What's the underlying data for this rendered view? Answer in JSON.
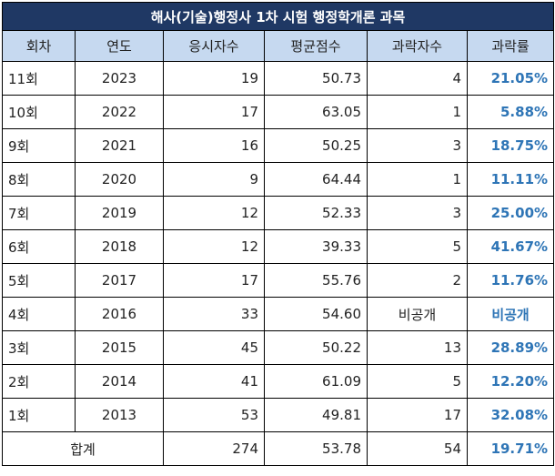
{
  "title": "해사(기술)행정사 1차 시험 행정학개론 과목",
  "headers": [
    "회차",
    "연도",
    "응시자수",
    "평균점수",
    "과락자수",
    "과락률"
  ],
  "rows": [
    {
      "round": "11회",
      "year": "2023",
      "applicants": "19",
      "avg": "50.73",
      "fails": "4",
      "rate": "21.05%"
    },
    {
      "round": "10회",
      "year": "2022",
      "applicants": "17",
      "avg": "63.05",
      "fails": "1",
      "rate": "5.88%"
    },
    {
      "round": "9회",
      "year": "2021",
      "applicants": "16",
      "avg": "50.25",
      "fails": "3",
      "rate": "18.75%"
    },
    {
      "round": "8회",
      "year": "2020",
      "applicants": "9",
      "avg": "64.44",
      "fails": "1",
      "rate": "11.11%"
    },
    {
      "round": "7회",
      "year": "2019",
      "applicants": "12",
      "avg": "52.33",
      "fails": "3",
      "rate": "25.00%"
    },
    {
      "round": "6회",
      "year": "2018",
      "applicants": "12",
      "avg": "39.33",
      "fails": "5",
      "rate": "41.67%"
    },
    {
      "round": "5회",
      "year": "2017",
      "applicants": "17",
      "avg": "55.76",
      "fails": "2",
      "rate": "11.76%"
    },
    {
      "round": "4회",
      "year": "2016",
      "applicants": "33",
      "avg": "54.60",
      "fails": "비공개",
      "rate": "비공개"
    },
    {
      "round": "3회",
      "year": "2015",
      "applicants": "45",
      "avg": "50.22",
      "fails": "13",
      "rate": "28.89%"
    },
    {
      "round": "2회",
      "year": "2014",
      "applicants": "41",
      "avg": "61.09",
      "fails": "5",
      "rate": "12.20%"
    },
    {
      "round": "1회",
      "year": "2013",
      "applicants": "53",
      "avg": "49.81",
      "fails": "17",
      "rate": "32.08%"
    }
  ],
  "total": {
    "label": "합계",
    "applicants": "274",
    "avg": "53.78",
    "fails": "54",
    "rate": "19.71%"
  },
  "colors": {
    "title_bg": "#1f3864",
    "header_bg": "#c6d9f0",
    "rate_text": "#2e75b6"
  }
}
